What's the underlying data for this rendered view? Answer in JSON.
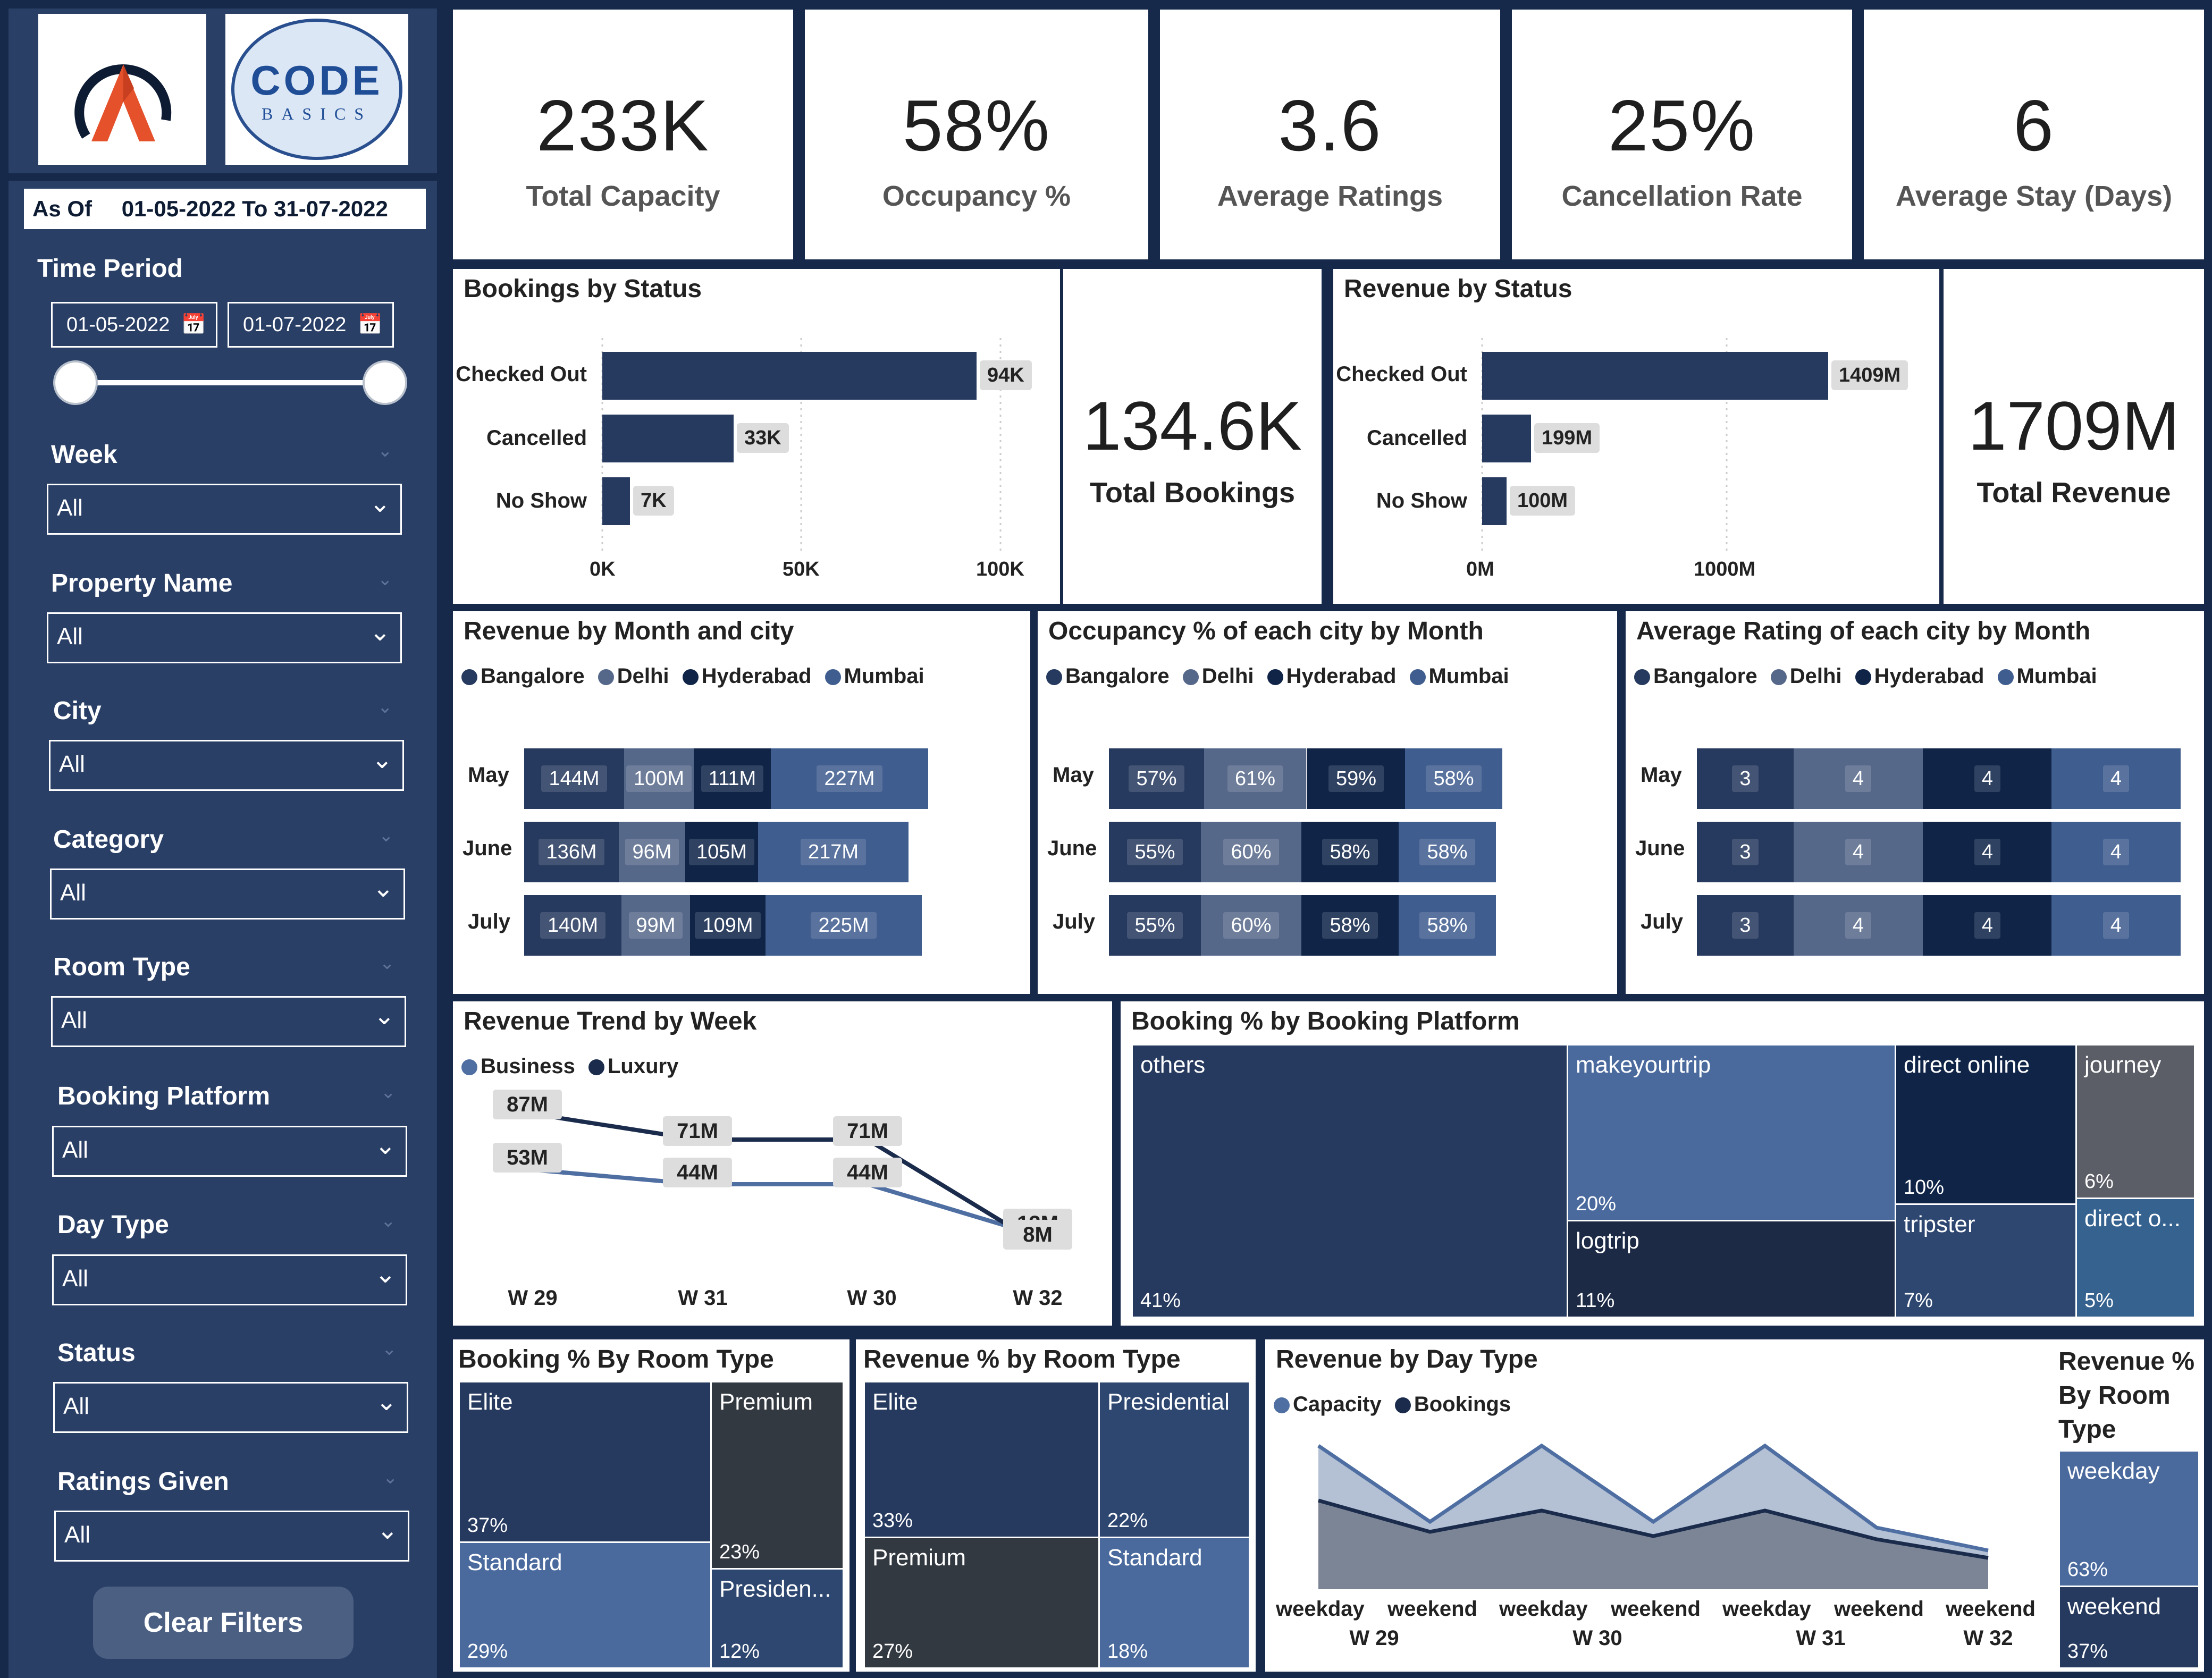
{
  "brand": {
    "logo_text_line1": "CODE",
    "logo_text_line2": "BASICS"
  },
  "sidebar": {
    "as_of_label": "As Of",
    "as_of_range": "01-05-2022 To  31-07-2022",
    "time_period_label": "Time Period",
    "date_from": "01-05-2022",
    "date_to": "01-07-2022",
    "slider_value": 1.0,
    "filters": [
      {
        "label": "Week",
        "value": "All"
      },
      {
        "label": "Property Name",
        "value": "All"
      },
      {
        "label": "City",
        "value": "All"
      },
      {
        "label": "Category",
        "value": "All"
      },
      {
        "label": "Room Type",
        "value": "All"
      },
      {
        "label": "Booking Platform",
        "value": "All"
      },
      {
        "label": "Day Type",
        "value": "All"
      },
      {
        "label": "Status",
        "value": "All"
      },
      {
        "label": "Ratings Given",
        "value": "All"
      }
    ],
    "clear_label": "Clear Filters"
  },
  "kpis": [
    {
      "value": "233K",
      "label": "Total Capacity"
    },
    {
      "value": "58%",
      "label": "Occupancy %"
    },
    {
      "value": "3.6",
      "label": "Average Ratings"
    },
    {
      "value": "25%",
      "label": "Cancellation Rate"
    },
    {
      "value": "6",
      "label": "Average Stay (Days)"
    }
  ],
  "bookings_total": {
    "value": "134.6K",
    "label": "Total Bookings"
  },
  "revenue_total": {
    "value": "1709M",
    "label": "Total Revenue"
  },
  "colors": {
    "navy": "#26395e",
    "mid": "#3f5d8f",
    "dark": "#0f2447",
    "light": "#4a6a9e",
    "grey": "#666a76",
    "charcoal": "#333941"
  },
  "chart_data": [
    {
      "type": "bar",
      "title": "Bookings by Status",
      "categories": [
        "Checked Out",
        "Cancelled",
        "No Show"
      ],
      "values": [
        94,
        33,
        7
      ],
      "value_labels": [
        "94K",
        "33K",
        "7K"
      ],
      "ticks": [
        "0K",
        "50K",
        "100K"
      ],
      "xlim": [
        0,
        100
      ]
    },
    {
      "type": "bar",
      "title": "Revenue by Status",
      "categories": [
        "Checked Out",
        "Cancelled",
        "No Show"
      ],
      "values": [
        1409,
        199,
        100
      ],
      "value_labels": [
        "1409M",
        "199M",
        "100M"
      ],
      "ticks": [
        "0M",
        "1000M"
      ],
      "xlim": [
        0,
        1620
      ]
    },
    {
      "type": "bar",
      "title": "Revenue by Month and city",
      "stacked": true,
      "categories": [
        "May",
        "June",
        "July"
      ],
      "legend": [
        "Bangalore",
        "Delhi",
        "Hyderabad",
        "Mumbai"
      ],
      "series": [
        {
          "name": "Bangalore",
          "values": [
            144,
            136,
            140
          ],
          "labels": [
            "144M",
            "136M",
            "140M"
          ]
        },
        {
          "name": "Delhi",
          "values": [
            100,
            96,
            99
          ],
          "labels": [
            "100M",
            "96M",
            "99M"
          ]
        },
        {
          "name": "Hyderabad",
          "values": [
            111,
            105,
            109
          ],
          "labels": [
            "111M",
            "105M",
            "109M"
          ]
        },
        {
          "name": "Mumbai",
          "values": [
            227,
            217,
            225
          ],
          "labels": [
            "227M",
            "217M",
            "225M"
          ]
        }
      ]
    },
    {
      "type": "bar",
      "title": "Occupancy % of each city by Month",
      "stacked": true,
      "categories": [
        "May",
        "June",
        "July"
      ],
      "legend": [
        "Bangalore",
        "Delhi",
        "Hyderabad",
        "Mumbai"
      ],
      "series": [
        {
          "name": "Bangalore",
          "values": [
            57,
            55,
            55
          ],
          "labels": [
            "57%",
            "55%",
            "55%"
          ]
        },
        {
          "name": "Delhi",
          "values": [
            61,
            60,
            60
          ],
          "labels": [
            "61%",
            "60%",
            "60%"
          ]
        },
        {
          "name": "Hyderabad",
          "values": [
            59,
            58,
            58
          ],
          "labels": [
            "59%",
            "58%",
            "58%"
          ]
        },
        {
          "name": "Mumbai",
          "values": [
            58,
            58,
            58
          ],
          "labels": [
            "58%",
            "58%",
            "58%"
          ]
        }
      ]
    },
    {
      "type": "bar",
      "title": "Average Rating of each city by Month",
      "stacked": true,
      "categories": [
        "May",
        "June",
        "July"
      ],
      "legend": [
        "Bangalore",
        "Delhi",
        "Hyderabad",
        "Mumbai"
      ],
      "series": [
        {
          "name": "Bangalore",
          "values": [
            3,
            3,
            3
          ],
          "labels": [
            "3",
            "3",
            "3"
          ]
        },
        {
          "name": "Delhi",
          "values": [
            4,
            4,
            4
          ],
          "labels": [
            "4",
            "4",
            "4"
          ]
        },
        {
          "name": "Hyderabad",
          "values": [
            4,
            4,
            4
          ],
          "labels": [
            "4",
            "4",
            "4"
          ]
        },
        {
          "name": "Mumbai",
          "values": [
            4,
            4,
            4
          ],
          "labels": [
            "4",
            "4",
            "4"
          ]
        }
      ]
    },
    {
      "type": "line",
      "title": "Revenue Trend by Week",
      "categories": [
        "W 29",
        "W 31",
        "W 30",
        "W 32"
      ],
      "legend": [
        "Business",
        "Luxury"
      ],
      "series": [
        {
          "name": "Business",
          "values": [
            53,
            44,
            44,
            13
          ],
          "labels": [
            "53M",
            "44M",
            "44M",
            "13M"
          ]
        },
        {
          "name": "Luxury",
          "values": [
            87,
            71,
            71,
            8
          ],
          "labels": [
            "87M",
            "71M",
            "71M",
            "8M"
          ]
        }
      ],
      "ylim": [
        0,
        100
      ]
    },
    {
      "type": "heatmap",
      "title": "Booking % by Booking Platform",
      "items": [
        {
          "name": "others",
          "pct": "41%"
        },
        {
          "name": "makeyourtrip",
          "pct": "20%"
        },
        {
          "name": "logtrip",
          "pct": "11%"
        },
        {
          "name": "direct online",
          "pct": "10%"
        },
        {
          "name": "tripster",
          "pct": "7%"
        },
        {
          "name": "journey",
          "pct": "6%"
        },
        {
          "name": "direct o...",
          "pct": "5%"
        }
      ]
    },
    {
      "type": "heatmap",
      "title": "Booking % By Room Type",
      "items": [
        {
          "name": "Elite",
          "pct": "37%"
        },
        {
          "name": "Premium",
          "pct": "23%"
        },
        {
          "name": "Standard",
          "pct": "29%"
        },
        {
          "name": "Presiden...",
          "pct": "12%"
        }
      ]
    },
    {
      "type": "heatmap",
      "title": "Revenue % by Room Type",
      "items": [
        {
          "name": "Elite",
          "pct": "33%"
        },
        {
          "name": "Presidential",
          "pct": "22%"
        },
        {
          "name": "Premium",
          "pct": "27%"
        },
        {
          "name": "Standard",
          "pct": "18%"
        }
      ]
    },
    {
      "type": "area",
      "title": "Revenue by Day Type",
      "legend": [
        "Capacity",
        "Bookings"
      ],
      "categories": [
        "weekday",
        "weekend",
        "weekday",
        "weekend",
        "weekday",
        "weekend",
        "weekend"
      ],
      "groups": [
        "W 29",
        "W 30",
        "W 31",
        "W 32"
      ],
      "series": [
        {
          "name": "Capacity",
          "values": [
            100,
            47,
            100,
            47,
            100,
            43,
            27
          ]
        },
        {
          "name": "Bookings",
          "values": [
            62,
            40,
            55,
            37,
            55,
            35,
            22
          ]
        }
      ],
      "ylim": [
        0,
        110
      ]
    },
    {
      "type": "heatmap",
      "title": "Revenue % By Room Type",
      "items": [
        {
          "name": "weekday",
          "pct": "63%"
        },
        {
          "name": "weekend",
          "pct": "37%"
        }
      ]
    }
  ]
}
